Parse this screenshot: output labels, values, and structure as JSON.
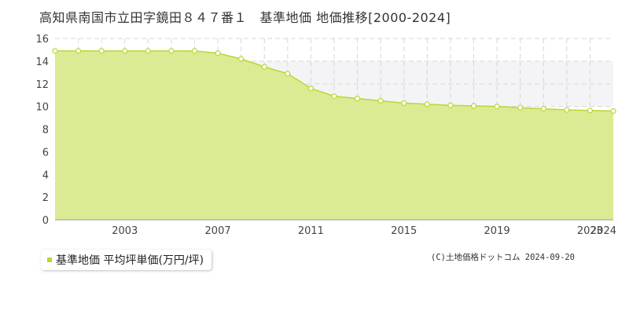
{
  "title": "高知県南国市立田字鏡田８４７番１　基準地価 地価推移[2000-2024]",
  "legend_label": "基準地価 平均坪単価(万円/坪)",
  "credit": "(C)土地価格ドットコム 2024-09-20",
  "colors": {
    "fill": "#dbeb93",
    "line": "#b5d935",
    "band": "#f4f4f6",
    "grid": "#d6d6d6"
  },
  "chart_data": {
    "type": "area",
    "title": "高知県南国市立田字鏡田８４７番１　基準地価 地価推移[2000-2024]",
    "xlabel": "",
    "ylabel": "",
    "x": [
      2000,
      2001,
      2002,
      2003,
      2004,
      2005,
      2006,
      2007,
      2008,
      2009,
      2010,
      2011,
      2012,
      2013,
      2014,
      2015,
      2016,
      2017,
      2018,
      2019,
      2020,
      2021,
      2022,
      2023,
      2024
    ],
    "xticks": [
      2003,
      2007,
      2011,
      2015,
      2019,
      2023,
      2024
    ],
    "ylim": [
      0,
      16
    ],
    "yticks": [
      0,
      2,
      4,
      6,
      8,
      10,
      12,
      14,
      16
    ],
    "highlight_band": [
      10,
      14
    ],
    "grid": true,
    "legend_position": "bottom-left",
    "series": [
      {
        "name": "基準地価 平均坪単価(万円/坪)",
        "values": [
          14.9,
          14.9,
          14.9,
          14.9,
          14.9,
          14.9,
          14.9,
          14.7,
          14.2,
          13.5,
          12.9,
          11.6,
          10.9,
          10.7,
          10.5,
          10.3,
          10.2,
          10.1,
          10.05,
          10.0,
          9.9,
          9.8,
          9.7,
          9.65,
          9.6
        ]
      }
    ]
  }
}
